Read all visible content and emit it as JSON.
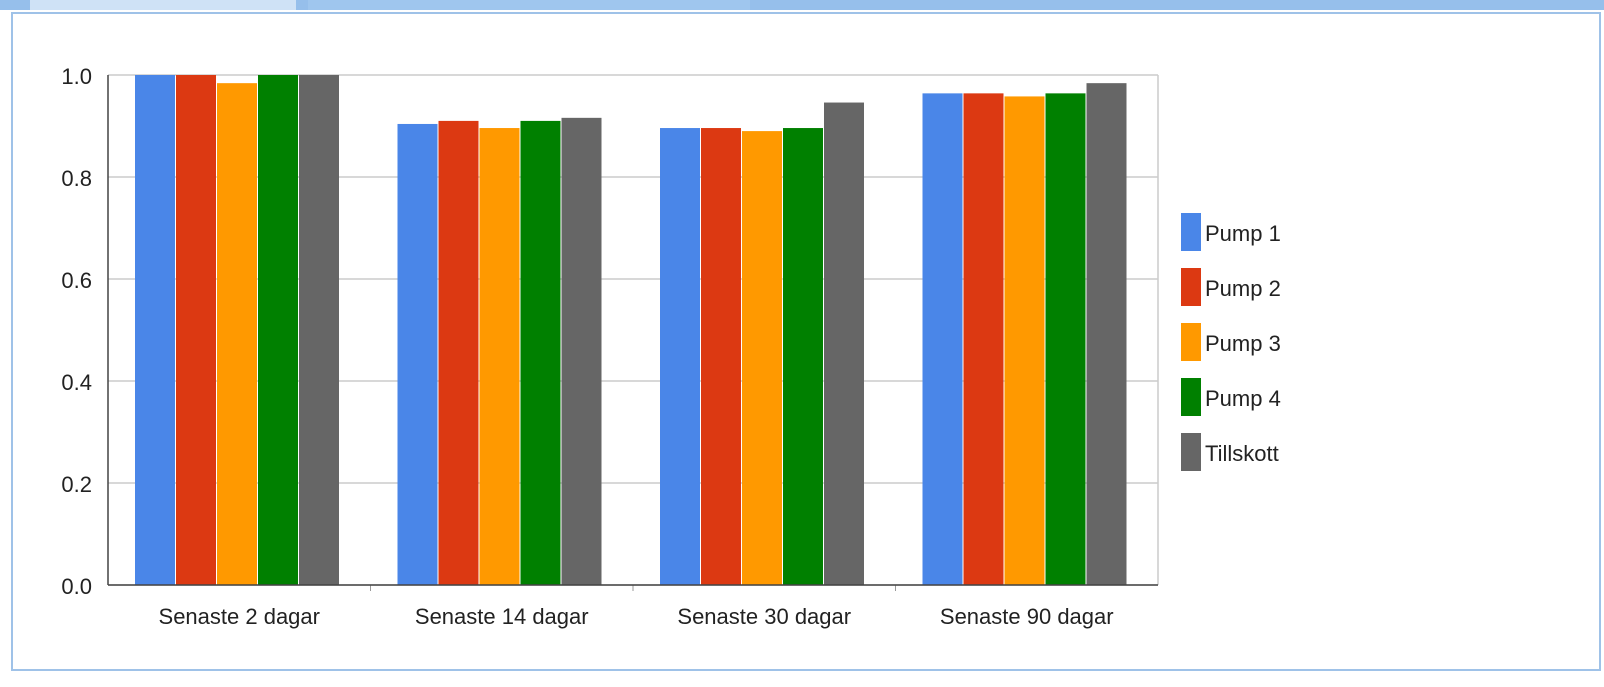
{
  "chart_data": {
    "type": "bar",
    "title": "",
    "xlabel": "",
    "ylabel": "",
    "ylim": [
      0,
      1.0
    ],
    "yticks": [
      "0.0",
      "0.2",
      "0.4",
      "0.6",
      "0.8",
      "1.0"
    ],
    "grid": true,
    "legend_position": "right",
    "categories": [
      "Senaste 2 dagar",
      "Senaste 14 dagar",
      "Senaste 30 dagar",
      "Senaste 90 dagar"
    ],
    "series": [
      {
        "name": "Pump 1",
        "color": "#4a86e8",
        "values": [
          1.0,
          0.904,
          0.896,
          0.964
        ]
      },
      {
        "name": "Pump 2",
        "color": "#dc3912",
        "values": [
          1.0,
          0.91,
          0.896,
          0.964
        ]
      },
      {
        "name": "Pump 3",
        "color": "#ff9900",
        "values": [
          0.984,
          0.896,
          0.89,
          0.958
        ]
      },
      {
        "name": "Pump 4",
        "color": "#008000",
        "values": [
          1.0,
          0.91,
          0.896,
          0.964
        ]
      },
      {
        "name": "Tillskott",
        "color": "#666666",
        "values": [
          1.0,
          0.916,
          0.946,
          0.984
        ]
      }
    ]
  }
}
